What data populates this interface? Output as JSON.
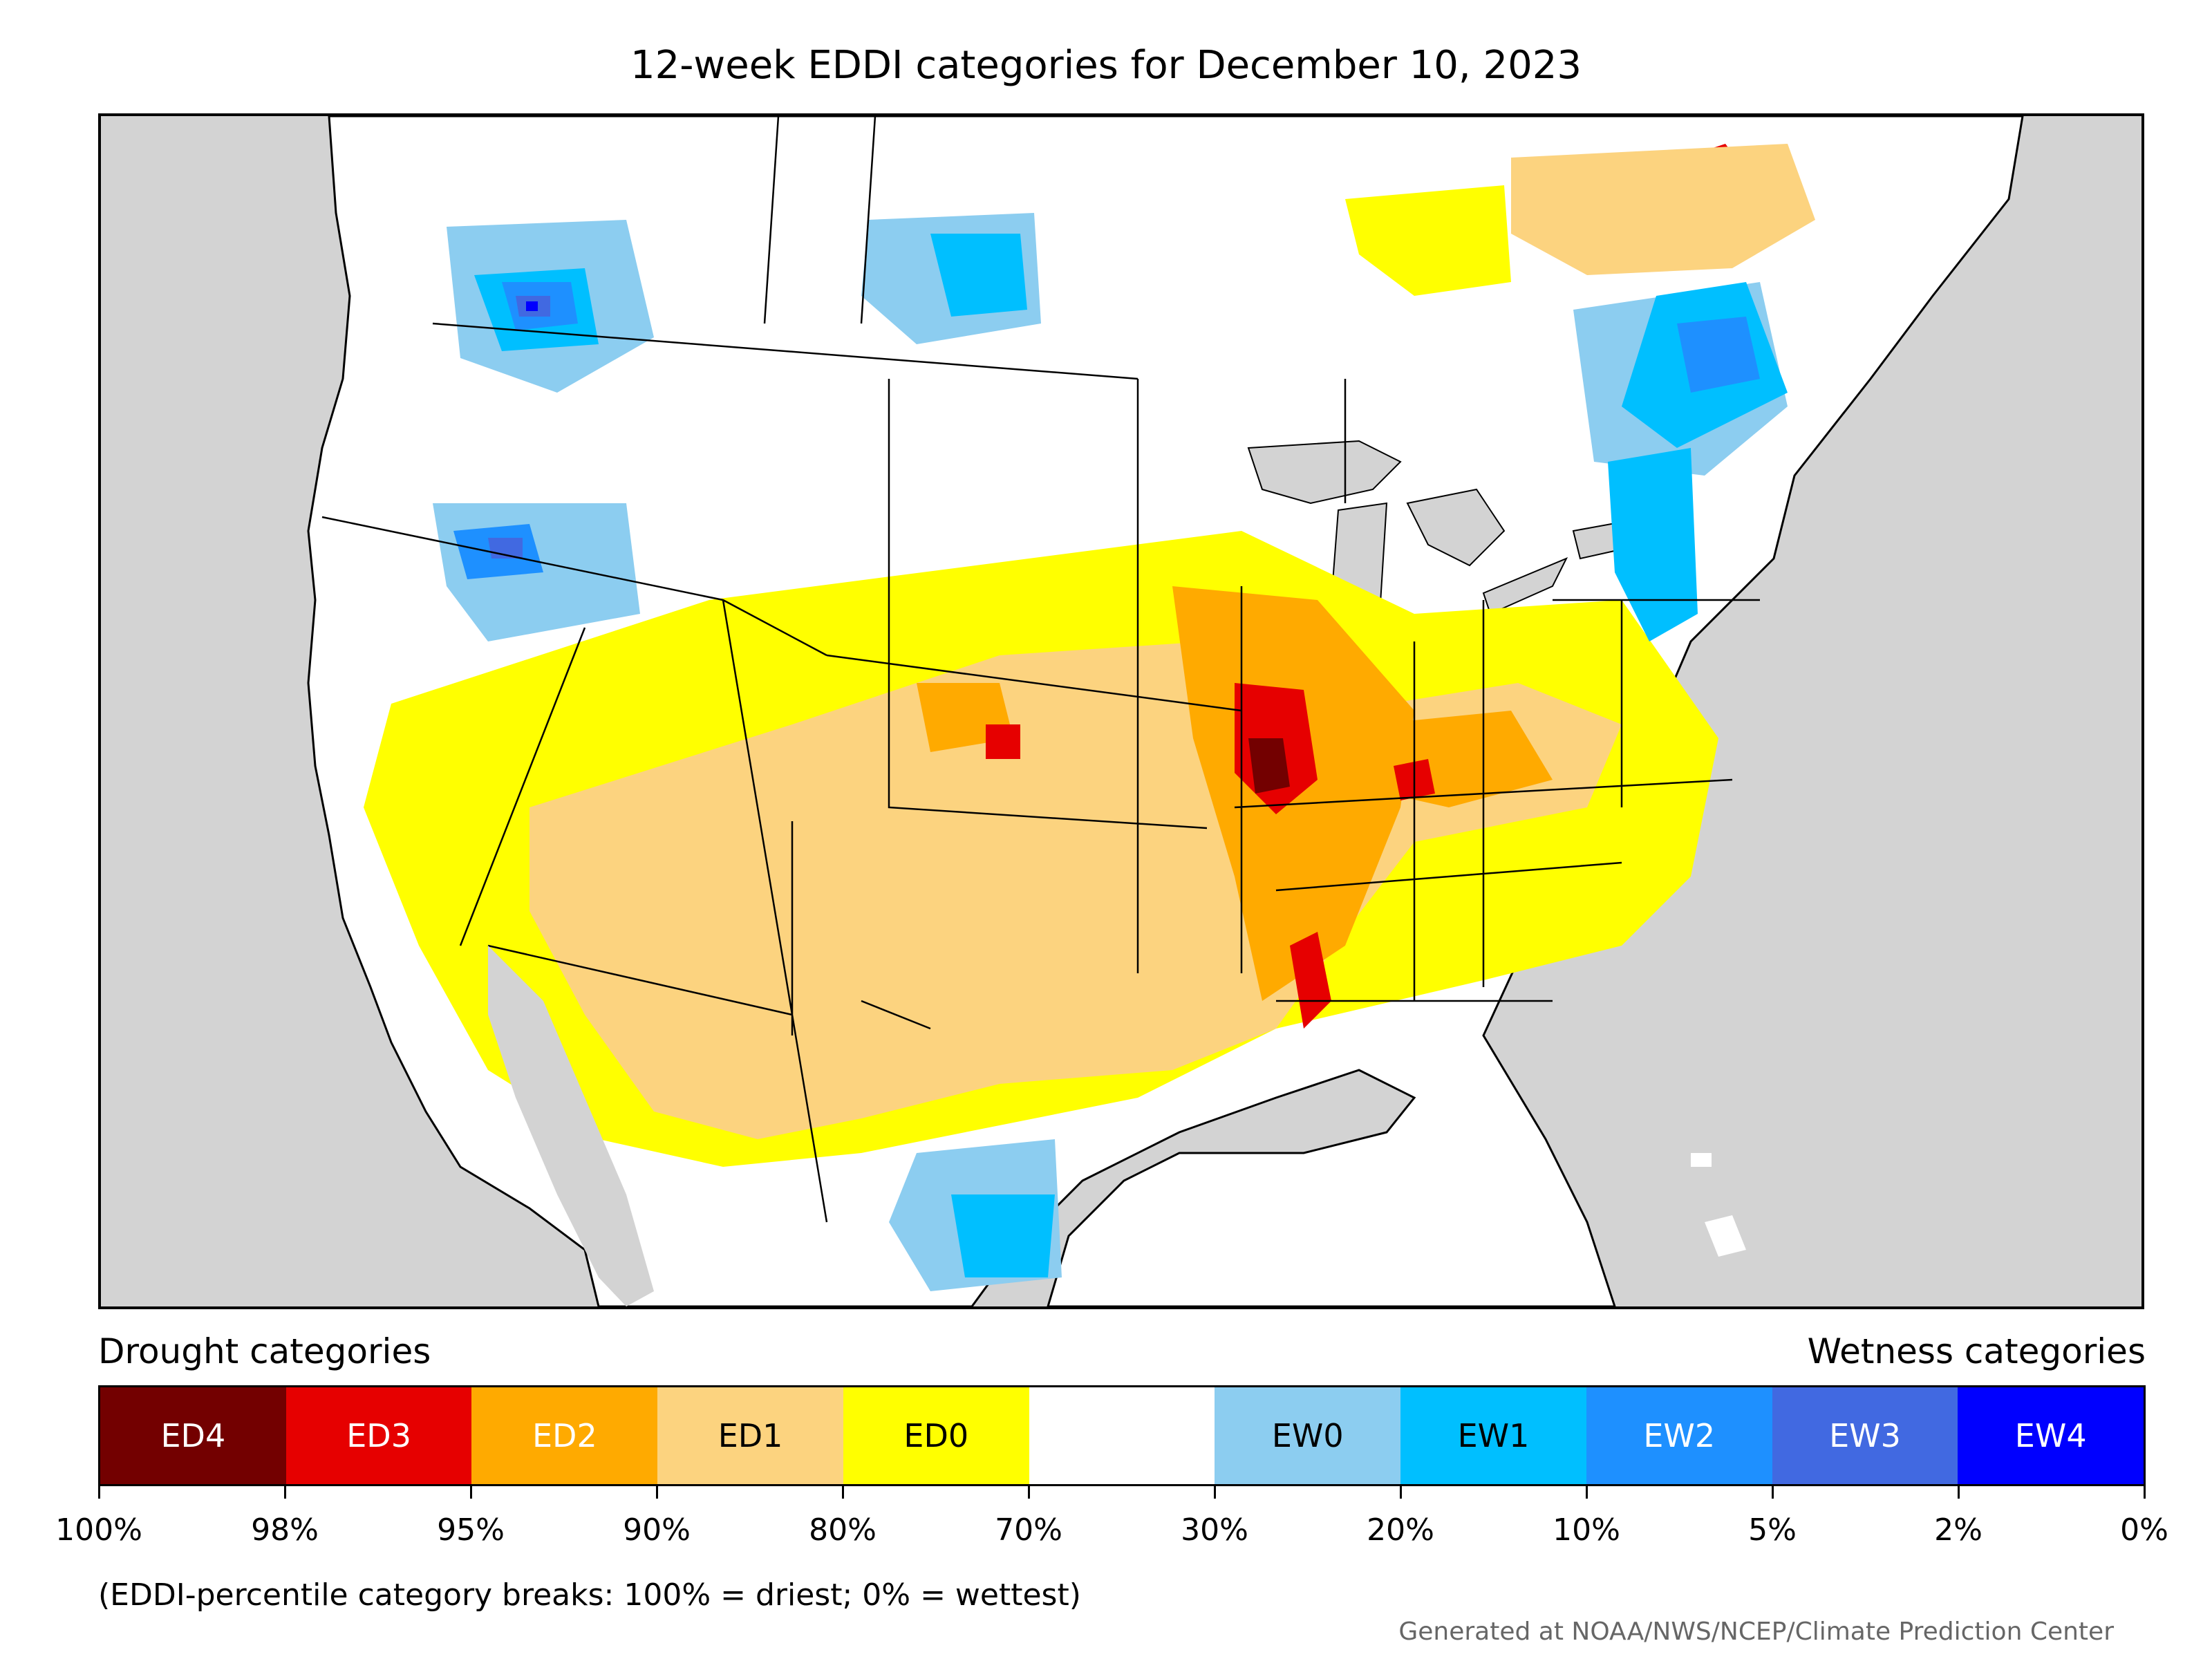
{
  "title": "12-week EDDI categories for December 10, 2023",
  "legend": {
    "drought_heading": "Drought categories",
    "wetness_heading": "Wetness categories",
    "categories": [
      {
        "label": "ED4",
        "color": "#730000",
        "text_color": "#ffffff"
      },
      {
        "label": "ED3",
        "color": "#e60000",
        "text_color": "#ffffff"
      },
      {
        "label": "ED2",
        "color": "#ffaa00",
        "text_color": "#ffffff"
      },
      {
        "label": "ED1",
        "color": "#fcd37f",
        "text_color": "#000000"
      },
      {
        "label": "ED0",
        "color": "#ffff00",
        "text_color": "#000000"
      },
      {
        "label": "",
        "color": "#ffffff",
        "text_color": "#000000"
      },
      {
        "label": "EW0",
        "color": "#8ccdf0",
        "text_color": "#000000"
      },
      {
        "label": "EW1",
        "color": "#00bfff",
        "text_color": "#000000"
      },
      {
        "label": "EW2",
        "color": "#1e90ff",
        "text_color": "#ffffff"
      },
      {
        "label": "EW3",
        "color": "#4169e1",
        "text_color": "#ffffff"
      },
      {
        "label": "EW4",
        "color": "#0000ff",
        "text_color": "#ffffff"
      }
    ],
    "ticks": [
      "100%",
      "98%",
      "95%",
      "90%",
      "80%",
      "70%",
      "30%",
      "20%",
      "10%",
      "5%",
      "2%",
      "0%"
    ]
  },
  "note": "(EDDI-percentile category breaks: 100% = driest; 0% = wettest)",
  "credit": "Generated at NOAA/NWS/NCEP/Climate Prediction Center",
  "colors": {
    "ocean_background": "#d3d3d3",
    "land": "#ffffff",
    "borders": "#000000"
  }
}
